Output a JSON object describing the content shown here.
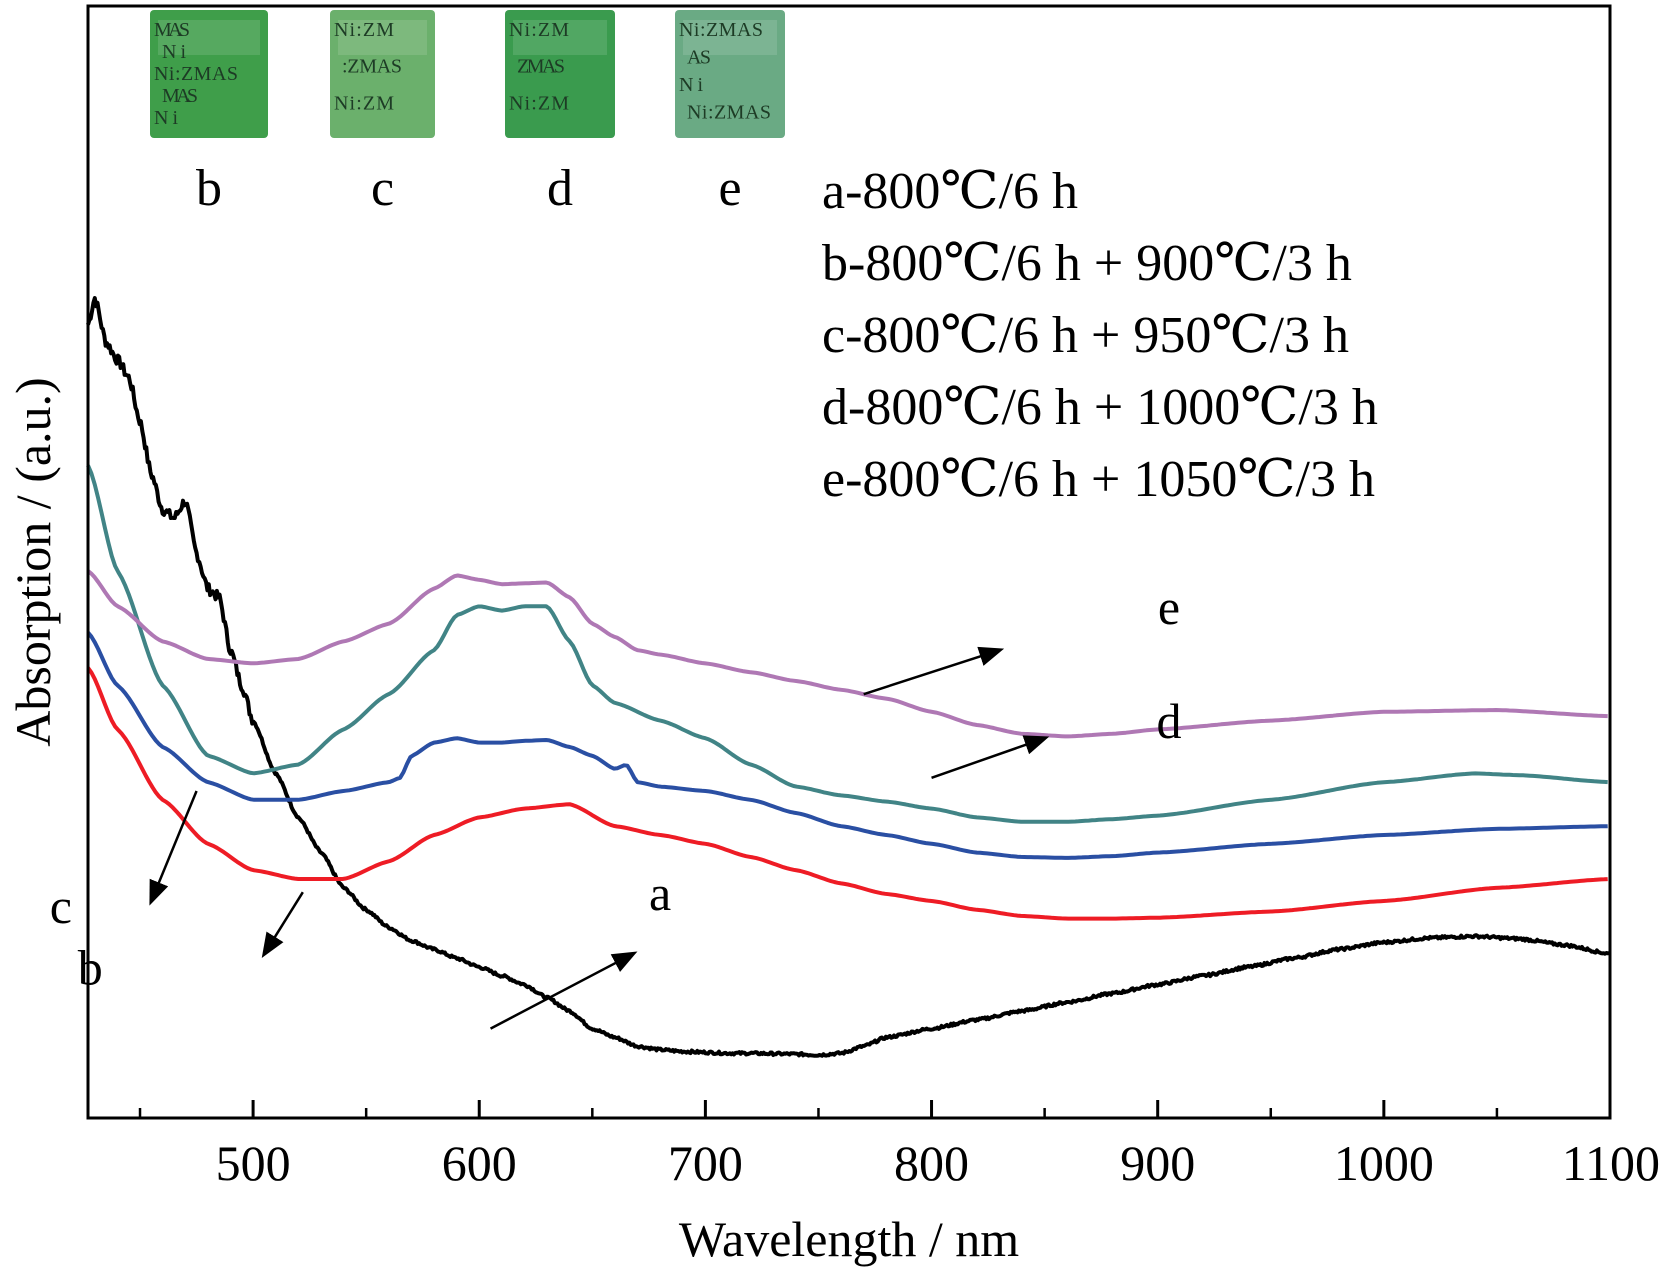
{
  "chart_data": {
    "type": "line",
    "xlabel": "Wavelength / nm",
    "ylabel": "Absorption / (a.u.)",
    "xlim": [
      427,
      1100
    ],
    "xticks_major": [
      500,
      600,
      700,
      800,
      900,
      1000,
      1100
    ],
    "xticks_minor": [
      450,
      550,
      650,
      750,
      850,
      950,
      1050
    ],
    "y_tick_labels": false,
    "grid": false,
    "legend_position": "top-right",
    "legend": [
      "a-800℃/6 h",
      "b-800℃/6 h + 900℃/3 h",
      "c-800℃/6 h + 950℃/3 h",
      "d-800℃/6 h + 1000℃/3 h",
      "e-800℃/6 h + 1050℃/3 h"
    ],
    "series": [
      {
        "name": "a",
        "color": "#000000",
        "x": [
          427,
          430,
          435,
          440,
          445,
          450,
          455,
          460,
          465,
          470,
          475,
          480,
          485,
          490,
          495,
          500,
          510,
          520,
          530,
          540,
          550,
          560,
          570,
          580,
          590,
          600,
          610,
          620,
          630,
          640,
          650,
          660,
          670,
          680,
          690,
          700,
          710,
          720,
          730,
          740,
          750,
          760,
          770,
          780,
          800,
          820,
          840,
          860,
          880,
          900,
          920,
          940,
          960,
          980,
          1000,
          1020,
          1040,
          1060,
          1080,
          1100
        ],
        "y": [
          0.83,
          0.86,
          0.81,
          0.79,
          0.77,
          0.72,
          0.66,
          0.62,
          0.61,
          0.63,
          0.57,
          0.53,
          0.52,
          0.46,
          0.42,
          0.38,
          0.32,
          0.27,
          0.23,
          0.19,
          0.165,
          0.145,
          0.13,
          0.12,
          0.11,
          0.1,
          0.09,
          0.08,
          0.065,
          0.05,
          0.03,
          0.02,
          0.01,
          0.006,
          0.004,
          0.003,
          0.002,
          0.002,
          0.0015,
          0.001,
          0.0,
          0.002,
          0.01,
          0.02,
          0.03,
          0.04,
          0.05,
          0.06,
          0.07,
          0.08,
          0.09,
          0.1,
          0.11,
          0.12,
          0.128,
          0.133,
          0.135,
          0.132,
          0.125,
          0.115
        ]
      },
      {
        "name": "b",
        "color": "#ee1c25",
        "x": [
          427,
          440,
          460,
          480,
          500,
          520,
          540,
          560,
          580,
          600,
          620,
          640,
          660,
          680,
          700,
          720,
          740,
          760,
          780,
          800,
          820,
          840,
          860,
          880,
          900,
          950,
          1000,
          1050,
          1100
        ],
        "y": [
          0.44,
          0.37,
          0.29,
          0.24,
          0.21,
          0.2,
          0.2,
          0.22,
          0.25,
          0.27,
          0.28,
          0.285,
          0.26,
          0.25,
          0.24,
          0.225,
          0.21,
          0.195,
          0.183,
          0.175,
          0.165,
          0.158,
          0.155,
          0.155,
          0.156,
          0.163,
          0.175,
          0.19,
          0.2
        ]
      },
      {
        "name": "c",
        "color": "#2a4fa3",
        "x": [
          427,
          440,
          460,
          480,
          500,
          520,
          540,
          560,
          565,
          570,
          580,
          590,
          600,
          610,
          620,
          630,
          640,
          650,
          660,
          665,
          670,
          680,
          700,
          720,
          740,
          760,
          780,
          800,
          820,
          840,
          860,
          880,
          900,
          950,
          1000,
          1050,
          1100
        ],
        "y": [
          0.48,
          0.42,
          0.35,
          0.31,
          0.29,
          0.29,
          0.3,
          0.31,
          0.315,
          0.34,
          0.355,
          0.36,
          0.355,
          0.355,
          0.357,
          0.358,
          0.35,
          0.34,
          0.325,
          0.33,
          0.31,
          0.305,
          0.3,
          0.29,
          0.275,
          0.26,
          0.25,
          0.24,
          0.23,
          0.225,
          0.224,
          0.226,
          0.23,
          0.24,
          0.25,
          0.257,
          0.26
        ]
      },
      {
        "name": "d",
        "color": "#418486",
        "x": [
          427,
          440,
          460,
          480,
          500,
          520,
          540,
          560,
          580,
          590,
          600,
          610,
          620,
          630,
          640,
          650,
          660,
          680,
          700,
          720,
          740,
          760,
          780,
          800,
          820,
          840,
          860,
          880,
          900,
          950,
          1000,
          1040,
          1060,
          1100
        ],
        "y": [
          0.67,
          0.55,
          0.42,
          0.34,
          0.32,
          0.33,
          0.37,
          0.41,
          0.46,
          0.5,
          0.51,
          0.505,
          0.51,
          0.51,
          0.47,
          0.42,
          0.4,
          0.38,
          0.36,
          0.33,
          0.305,
          0.295,
          0.288,
          0.28,
          0.27,
          0.265,
          0.265,
          0.268,
          0.272,
          0.29,
          0.31,
          0.32,
          0.318,
          0.31
        ]
      },
      {
        "name": "e",
        "color": "#af78b4",
        "x": [
          427,
          440,
          460,
          480,
          500,
          520,
          540,
          560,
          580,
          590,
          600,
          610,
          620,
          630,
          640,
          650,
          660,
          670,
          680,
          700,
          720,
          740,
          760,
          780,
          800,
          820,
          840,
          860,
          880,
          900,
          950,
          1000,
          1050,
          1100
        ],
        "y": [
          0.55,
          0.51,
          0.47,
          0.45,
          0.445,
          0.45,
          0.47,
          0.49,
          0.53,
          0.545,
          0.54,
          0.535,
          0.536,
          0.537,
          0.52,
          0.49,
          0.475,
          0.46,
          0.455,
          0.445,
          0.435,
          0.425,
          0.415,
          0.405,
          0.39,
          0.375,
          0.365,
          0.362,
          0.365,
          0.37,
          0.38,
          0.39,
          0.392,
          0.385
        ]
      }
    ],
    "annotations": [
      {
        "label": "a",
        "text_x": 680,
        "text_y": 0.165,
        "arrow_from": [
          605,
          0.03
        ],
        "arrow_to": [
          668,
          0.115
        ]
      },
      {
        "label": "b",
        "text_x": 428,
        "text_y": 0.08,
        "arrow_from": [
          522,
          0.185
        ],
        "arrow_to": [
          505,
          0.115
        ]
      },
      {
        "label": "c",
        "text_x": 415,
        "text_y": 0.15,
        "arrow_from": [
          475,
          0.3
        ],
        "arrow_to": [
          455,
          0.175
        ]
      },
      {
        "label": "d",
        "text_x": 905,
        "text_y": 0.36,
        "arrow_from": [
          800,
          0.315
        ],
        "arrow_to": [
          850,
          0.36
        ]
      },
      {
        "label": "e",
        "text_x": 905,
        "text_y": 0.49,
        "arrow_from": [
          770,
          0.41
        ],
        "arrow_to": [
          830,
          0.46
        ]
      }
    ]
  },
  "inset_photos": [
    {
      "label": "b",
      "color": "#3f9e4a",
      "texts": [
        "MAS",
        "Ni",
        "Ni:ZMAS",
        "MAS",
        "Ni"
      ]
    },
    {
      "label": "c",
      "color": "#6bb06c",
      "texts": [
        "Ni:ZM",
        ":ZMAS",
        "Ni:ZM"
      ]
    },
    {
      "label": "d",
      "color": "#3a9b4e",
      "texts": [
        "Ni:ZM",
        "ZMAS",
        "Ni:ZM"
      ]
    },
    {
      "label": "e",
      "color": "#6aaa84",
      "texts": [
        "Ni:ZMAS",
        "AS",
        "Ni",
        "Ni:ZMAS"
      ]
    }
  ]
}
